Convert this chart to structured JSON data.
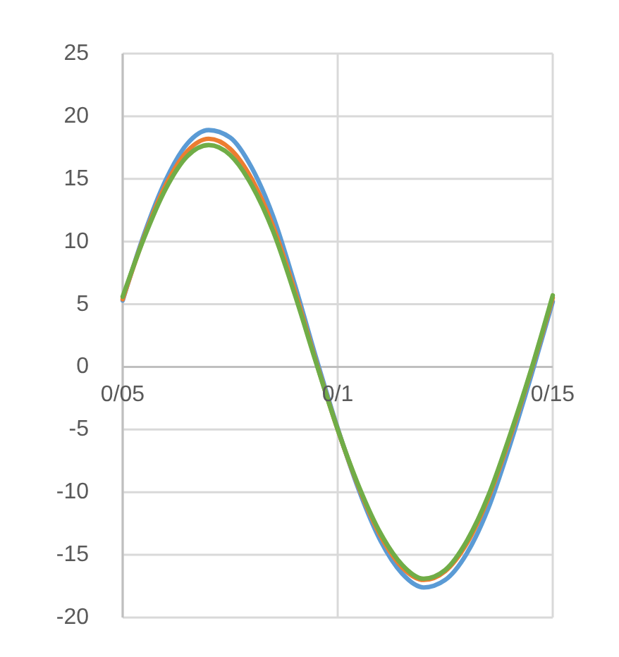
{
  "chart_data": {
    "type": "line",
    "categories": [
      "0/05",
      null,
      null,
      null,
      null,
      null,
      null,
      null,
      null,
      null,
      "0/1",
      null,
      null,
      null,
      null,
      null,
      null,
      null,
      null,
      null,
      "0/15"
    ],
    "series": [
      {
        "color": "#5b9bd5",
        "values": [
          5.3,
          10.6,
          14.9,
          17.8,
          18.9,
          18.3,
          15.9,
          12.0,
          6.6,
          0.7,
          -4.9,
          -9.9,
          -13.9,
          -16.5,
          -17.6,
          -17.0,
          -14.9,
          -11.3,
          -6.3,
          -0.7,
          5.2
        ]
      },
      {
        "color": "#ed7d31",
        "values": [
          5.4,
          10.4,
          14.5,
          17.2,
          18.2,
          17.4,
          15.0,
          11.2,
          6.1,
          0.4,
          -5.0,
          -9.7,
          -13.5,
          -16.0,
          -17.0,
          -16.3,
          -14.1,
          -10.5,
          -5.7,
          -0.3,
          5.5
        ]
      },
      {
        "color": "#70ad47",
        "values": [
          5.6,
          10.3,
          14.2,
          16.8,
          17.7,
          16.9,
          14.5,
          10.8,
          5.8,
          0.3,
          -5.0,
          -9.6,
          -13.3,
          -15.8,
          -16.9,
          -16.2,
          -13.9,
          -10.3,
          -5.5,
          -0.2,
          5.7
        ]
      }
    ],
    "ylim": [
      -20,
      25
    ],
    "yticks": [
      -20,
      -15,
      -10,
      -5,
      0,
      5,
      10,
      15,
      20,
      25
    ],
    "grid": true,
    "marker": "none",
    "line_style": "solid"
  }
}
